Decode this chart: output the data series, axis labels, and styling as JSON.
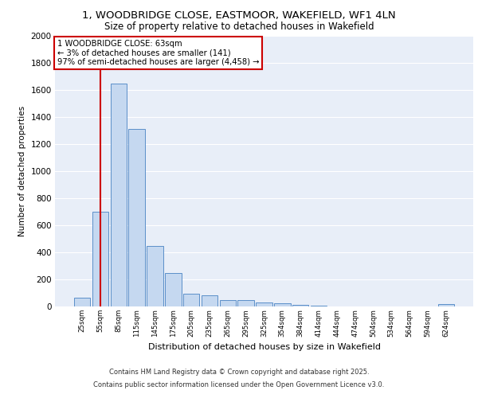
{
  "title_line1": "1, WOODBRIDGE CLOSE, EASTMOOR, WAKEFIELD, WF1 4LN",
  "title_line2": "Size of property relative to detached houses in Wakefield",
  "xlabel": "Distribution of detached houses by size in Wakefield",
  "ylabel": "Number of detached properties",
  "footer_line1": "Contains HM Land Registry data © Crown copyright and database right 2025.",
  "footer_line2": "Contains public sector information licensed under the Open Government Licence v3.0.",
  "bar_labels": [
    "25sqm",
    "55sqm",
    "85sqm",
    "115sqm",
    "145sqm",
    "175sqm",
    "205sqm",
    "235sqm",
    "265sqm",
    "295sqm",
    "325sqm",
    "354sqm",
    "384sqm",
    "414sqm",
    "444sqm",
    "474sqm",
    "504sqm",
    "534sqm",
    "564sqm",
    "594sqm",
    "624sqm"
  ],
  "bar_values": [
    65,
    700,
    1650,
    1310,
    445,
    250,
    95,
    85,
    50,
    45,
    28,
    22,
    10,
    5,
    2,
    2,
    1,
    0,
    0,
    0,
    15
  ],
  "bar_color": "#c5d8f0",
  "bar_edge_color": "#5b8fc9",
  "background_color": "#e8eef8",
  "grid_color": "#ffffff",
  "annotation_text": "1 WOODBRIDGE CLOSE: 63sqm\n← 3% of detached houses are smaller (141)\n97% of semi-detached houses are larger (4,458) →",
  "annotation_box_color": "#ffffff",
  "annotation_box_edge_color": "#cc0000",
  "vline_x": 1,
  "vline_color": "#cc0000",
  "ylim": [
    0,
    2000
  ],
  "yticks": [
    0,
    200,
    400,
    600,
    800,
    1000,
    1200,
    1400,
    1600,
    1800,
    2000
  ],
  "fig_bg": "#ffffff"
}
